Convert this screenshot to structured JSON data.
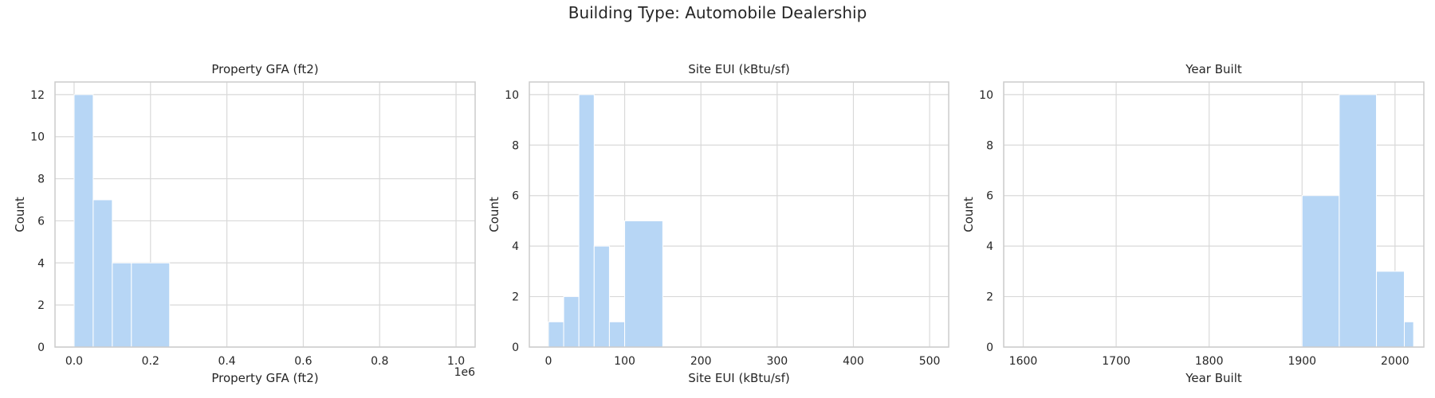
{
  "figure": {
    "suptitle": "Building Type: Automobile Dealership"
  },
  "colors": {
    "bar": "#b7d6f5",
    "grid": "#d9d9d9",
    "axes": "#cccccc",
    "text": "#262626"
  },
  "chart_data": [
    {
      "type": "bar",
      "title": "Property GFA (ft2)",
      "xlabel": "Property GFA (ft2)",
      "ylabel": "Count",
      "xlim": [
        -0.05,
        1.05
      ],
      "ylim": [
        0,
        12.6
      ],
      "xticks": [
        0.0,
        0.2,
        0.4,
        0.6,
        0.8,
        1.0
      ],
      "xtick_labels": [
        "0.0",
        "0.2",
        "0.4",
        "0.6",
        "0.8",
        "1.0"
      ],
      "yticks": [
        0,
        2,
        4,
        6,
        8,
        10,
        12
      ],
      "offset_label": "1e6",
      "bins": [
        {
          "x0": 0.0,
          "x1": 0.05,
          "count": 12
        },
        {
          "x0": 0.05,
          "x1": 0.1,
          "count": 7
        },
        {
          "x0": 0.1,
          "x1": 0.15,
          "count": 4
        },
        {
          "x0": 0.15,
          "x1": 0.25,
          "count": 4
        }
      ]
    },
    {
      "type": "bar",
      "title": "Site EUI (kBtu/sf)",
      "xlabel": "Site EUI (kBtu/sf)",
      "ylabel": "Count",
      "xlim": [
        -25,
        525
      ],
      "ylim": [
        0,
        10.5
      ],
      "xticks": [
        0,
        100,
        200,
        300,
        400,
        500
      ],
      "xtick_labels": [
        "0",
        "100",
        "200",
        "300",
        "400",
        "500"
      ],
      "yticks": [
        0,
        2,
        4,
        6,
        8,
        10
      ],
      "bins": [
        {
          "x0": 0,
          "x1": 20,
          "count": 1
        },
        {
          "x0": 20,
          "x1": 40,
          "count": 2
        },
        {
          "x0": 40,
          "x1": 60,
          "count": 10
        },
        {
          "x0": 60,
          "x1": 80,
          "count": 4
        },
        {
          "x0": 80,
          "x1": 100,
          "count": 1
        },
        {
          "x0": 100,
          "x1": 150,
          "count": 5
        }
      ]
    },
    {
      "type": "bar",
      "title": "Year Built",
      "xlabel": "Year Built",
      "ylabel": "Count",
      "xlim": [
        1579,
        2031
      ],
      "ylim": [
        0,
        10.5
      ],
      "xticks": [
        1600,
        1700,
        1800,
        1900,
        2000
      ],
      "xtick_labels": [
        "1600",
        "1700",
        "1800",
        "1900",
        "2000"
      ],
      "yticks": [
        0,
        2,
        4,
        6,
        8,
        10
      ],
      "bins": [
        {
          "x0": 1900,
          "x1": 1940,
          "count": 6
        },
        {
          "x0": 1940,
          "x1": 1980,
          "count": 10
        },
        {
          "x0": 1980,
          "x1": 2010,
          "count": 3
        },
        {
          "x0": 2010,
          "x1": 2020,
          "count": 1
        }
      ]
    }
  ]
}
